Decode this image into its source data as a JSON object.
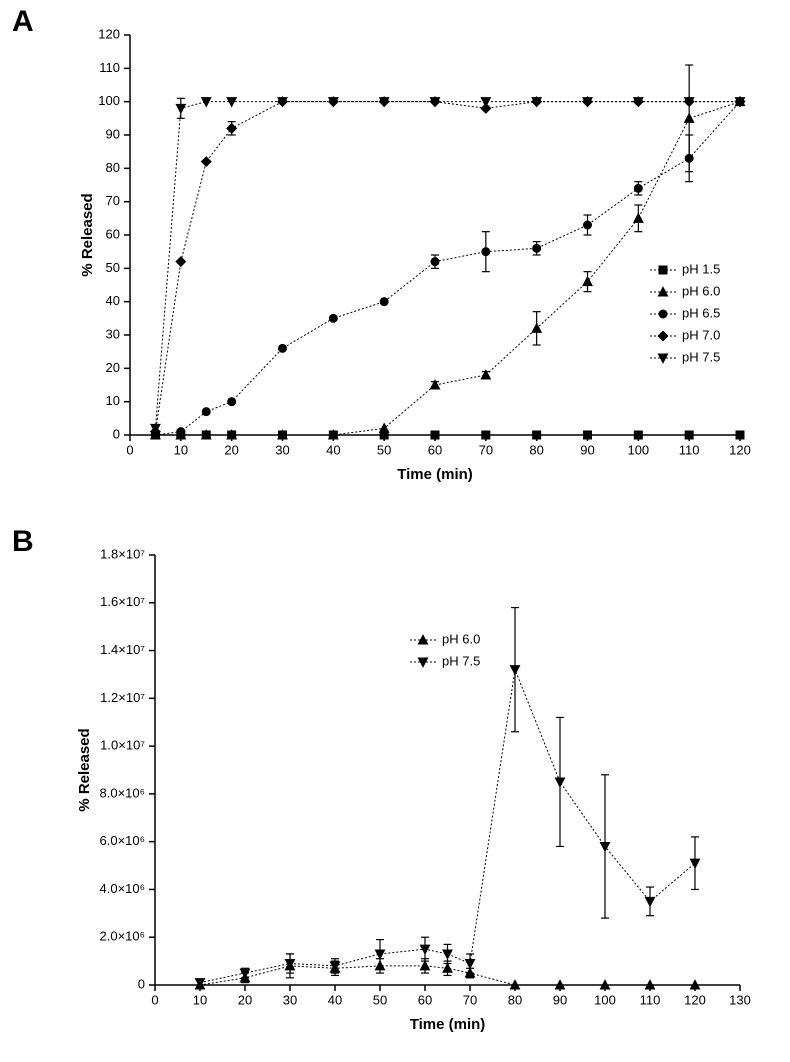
{
  "panelA": {
    "label": "A",
    "type": "line-scatter",
    "xlabel": "Time (min)",
    "ylabel": "% Released",
    "xlim": [
      0,
      120
    ],
    "ylim": [
      0,
      120
    ],
    "xtick_step": 10,
    "ytick_step": 10,
    "background_color": "#ffffff",
    "axis_color": "#000000",
    "line_dash": "2 2",
    "label_fontsize": 15,
    "tick_fontsize": 13,
    "marker_size": 6,
    "series": [
      {
        "name": "pH 1.5",
        "marker": "square",
        "x": [
          5,
          10,
          15,
          20,
          30,
          40,
          50,
          60,
          70,
          80,
          90,
          100,
          110,
          120
        ],
        "y": [
          0,
          0,
          0,
          0,
          0,
          0,
          0,
          0,
          0,
          0,
          0,
          0,
          0,
          0
        ],
        "yerr": [
          0,
          0,
          0,
          0,
          0,
          0,
          0,
          0,
          0,
          0,
          0,
          0,
          0,
          0
        ]
      },
      {
        "name": "pH 6.0",
        "marker": "triangle-up",
        "x": [
          5,
          10,
          15,
          20,
          30,
          40,
          50,
          60,
          70,
          80,
          90,
          100,
          110,
          120
        ],
        "y": [
          0,
          0,
          0,
          0,
          0,
          0,
          2,
          15,
          18,
          32,
          46,
          65,
          95,
          100
        ],
        "yerr": [
          0,
          0,
          0,
          0,
          0,
          0,
          0,
          1,
          1,
          5,
          3,
          4,
          16,
          0
        ]
      },
      {
        "name": "pH 6.5",
        "marker": "circle",
        "x": [
          5,
          10,
          15,
          20,
          30,
          40,
          50,
          60,
          70,
          80,
          90,
          100,
          110,
          120
        ],
        "y": [
          0,
          1,
          7,
          10,
          26,
          35,
          40,
          52,
          55,
          56,
          63,
          74,
          83,
          100
        ],
        "yerr": [
          0,
          0,
          0,
          0,
          0,
          0,
          0,
          2,
          6,
          2,
          3,
          2,
          7,
          0
        ]
      },
      {
        "name": "pH 7.0",
        "marker": "diamond",
        "x": [
          5,
          10,
          15,
          20,
          30,
          40,
          50,
          60,
          70,
          80,
          90,
          100,
          110,
          120
        ],
        "y": [
          1,
          52,
          82,
          92,
          100,
          100,
          100,
          100,
          98,
          100,
          100,
          100,
          100,
          100
        ],
        "yerr": [
          0,
          0,
          0,
          2,
          0,
          0,
          0,
          0,
          0,
          0,
          0,
          0,
          0,
          0
        ]
      },
      {
        "name": "pH 7.5",
        "marker": "triangle-down",
        "x": [
          5,
          10,
          15,
          20,
          30,
          40,
          50,
          60,
          70,
          80,
          90,
          100,
          110,
          120
        ],
        "y": [
          2,
          98,
          100,
          100,
          100,
          100,
          100,
          100,
          100,
          100,
          100,
          100,
          100,
          100
        ],
        "yerr": [
          0,
          3,
          0,
          0,
          0,
          0,
          0,
          0,
          0,
          0,
          0,
          0,
          0,
          0
        ]
      }
    ]
  },
  "panelB": {
    "label": "B",
    "type": "line-scatter",
    "xlabel": "Time (min)",
    "ylabel": "% Released",
    "xlim": [
      0,
      130
    ],
    "ylim": [
      0,
      18000000.0
    ],
    "xtick_step": 10,
    "ytick_step": 2000000.0,
    "ytick_format": "sci",
    "background_color": "#ffffff",
    "axis_color": "#000000",
    "line_dash": "2 2",
    "label_fontsize": 15,
    "tick_fontsize": 13,
    "marker_size": 6,
    "series": [
      {
        "name": "pH 6.0",
        "marker": "triangle-up",
        "x": [
          10,
          20,
          30,
          40,
          50,
          60,
          65,
          70,
          80,
          90,
          100,
          110,
          120
        ],
        "y": [
          0,
          300000.0,
          800000.0,
          700000.0,
          800000.0,
          800000.0,
          700000.0,
          500000.0,
          0,
          0,
          0,
          0,
          0
        ],
        "yerr": [
          0,
          200000.0,
          500000.0,
          300000.0,
          300000.0,
          300000.0,
          300000.0,
          200000.0,
          0,
          0,
          0,
          0,
          0
        ]
      },
      {
        "name": "pH 7.5",
        "marker": "triangle-down",
        "x": [
          10,
          20,
          30,
          40,
          50,
          60,
          65,
          70,
          80,
          90,
          100,
          110,
          120
        ],
        "y": [
          100000.0,
          500000.0,
          900000.0,
          800000.0,
          1300000.0,
          1500000.0,
          1300000.0,
          900000.0,
          13200000.0,
          8500000.0,
          5800000.0,
          3500000.0,
          5100000.0
        ],
        "yerr": [
          0,
          200000.0,
          400000.0,
          300000.0,
          600000.0,
          500000.0,
          400000.0,
          400000.0,
          2600000.0,
          2700000.0,
          3000000.0,
          600000.0,
          1100000.0
        ]
      }
    ]
  }
}
